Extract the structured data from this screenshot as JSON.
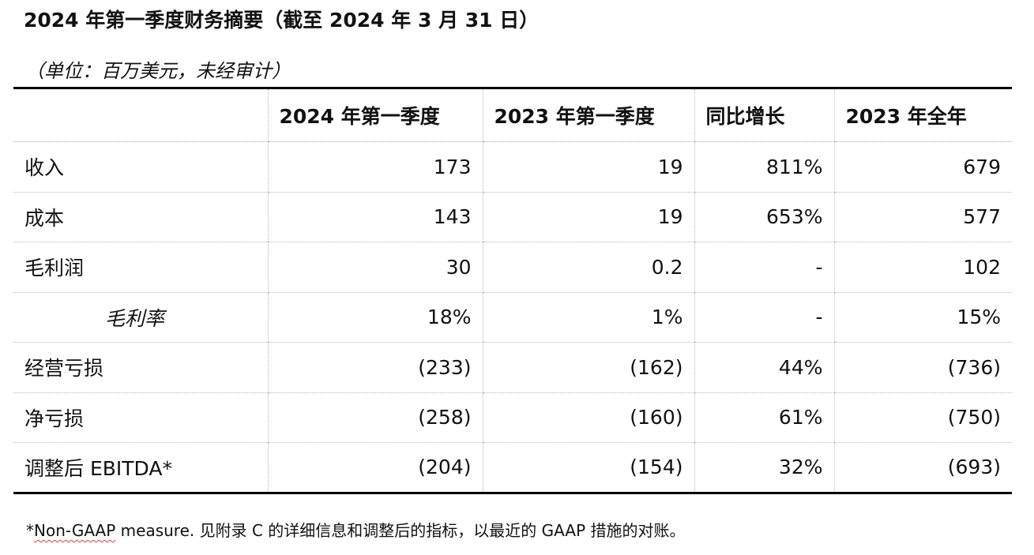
{
  "document": {
    "title": "2024 年第一季度财务摘要（截至 2024 年 3 月 31 日）",
    "unit_note": "（单位：百万美元，未经审计）"
  },
  "table": {
    "headers": [
      "",
      "2024 年第一季度",
      "2023 年第一季度",
      "同比增长",
      "2023 年全年"
    ],
    "rows": [
      {
        "label": "收入",
        "cells": [
          "173",
          "19",
          "811%",
          "679"
        ]
      },
      {
        "label": "成本",
        "cells": [
          "143",
          "19",
          "653%",
          "577"
        ]
      },
      {
        "label": "毛利润",
        "cells": [
          "30",
          "0.2",
          "-",
          "102"
        ]
      },
      {
        "label": "毛利率",
        "cells": [
          "18%",
          "1%",
          "-",
          "15%"
        ]
      },
      {
        "label": "经营亏损",
        "cells": [
          "(233)",
          "(162)",
          "44%",
          "(736)"
        ]
      },
      {
        "label": "净亏损",
        "cells": [
          "(258)",
          "(160)",
          "61%",
          "(750)"
        ]
      },
      {
        "label": "调整后 EBITDA*",
        "cells": [
          "(204)",
          "(154)",
          "32%",
          "(693)"
        ]
      }
    ]
  },
  "footnote": {
    "prefix": "*",
    "underlined": "Non-GAAP",
    "rest": " measure. 见附录 C 的详细信息和调整后的指标，以最近的 GAAP 措施的对账。"
  }
}
